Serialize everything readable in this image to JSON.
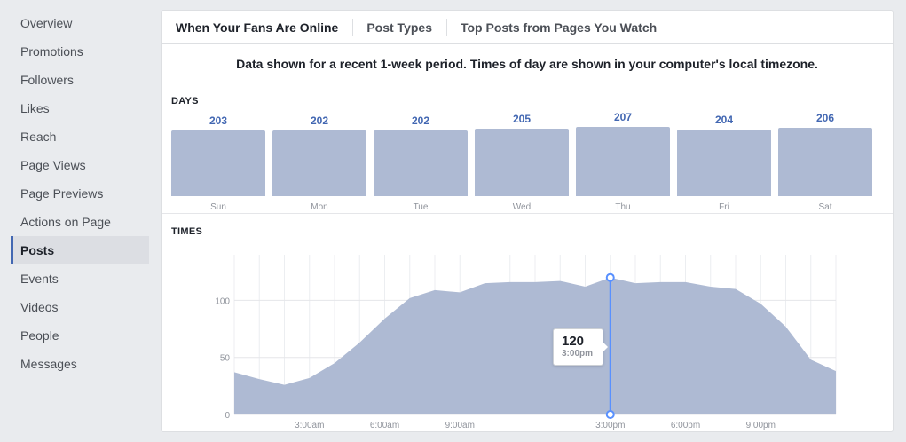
{
  "sidebar": {
    "items": [
      {
        "label": "Overview",
        "active": false
      },
      {
        "label": "Promotions",
        "active": false
      },
      {
        "label": "Followers",
        "active": false
      },
      {
        "label": "Likes",
        "active": false
      },
      {
        "label": "Reach",
        "active": false
      },
      {
        "label": "Page Views",
        "active": false
      },
      {
        "label": "Page Previews",
        "active": false
      },
      {
        "label": "Actions on Page",
        "active": false
      },
      {
        "label": "Posts",
        "active": true
      },
      {
        "label": "Events",
        "active": false
      },
      {
        "label": "Videos",
        "active": false
      },
      {
        "label": "People",
        "active": false
      },
      {
        "label": "Messages",
        "active": false
      }
    ]
  },
  "tabs": [
    {
      "label": "When Your Fans Are Online",
      "active": true
    },
    {
      "label": "Post Types",
      "active": false
    },
    {
      "label": "Top Posts from Pages You Watch",
      "active": false
    }
  ],
  "notice": "Data shown for a recent 1-week period. Times of day are shown in your computer's local timezone.",
  "days_section": {
    "title": "DAYS"
  },
  "times_section": {
    "title": "TIMES"
  },
  "tooltip": {
    "value": "120",
    "time": "3:00pm"
  },
  "colors": {
    "accent": "#4267b2",
    "fill": "#aebad3",
    "line": "#5890ff"
  },
  "chart_data": [
    {
      "type": "bar",
      "title": "DAYS",
      "categories": [
        "Sun",
        "Mon",
        "Tue",
        "Wed",
        "Thu",
        "Fri",
        "Sat"
      ],
      "values": [
        203,
        202,
        202,
        205,
        207,
        204,
        206
      ]
    },
    {
      "type": "area",
      "title": "TIMES",
      "x": [
        "12:00am",
        "1:00am",
        "2:00am",
        "3:00am",
        "4:00am",
        "5:00am",
        "6:00am",
        "7:00am",
        "8:00am",
        "9:00am",
        "10:00am",
        "11:00am",
        "12:00pm",
        "1:00pm",
        "2:00pm",
        "3:00pm",
        "4:00pm",
        "5:00pm",
        "6:00pm",
        "7:00pm",
        "8:00pm",
        "9:00pm",
        "10:00pm",
        "11:00pm",
        "12:00am"
      ],
      "values": [
        37,
        31,
        26,
        32,
        45,
        63,
        84,
        102,
        109,
        107,
        115,
        116,
        116,
        117,
        112,
        120,
        115,
        116,
        116,
        112,
        110,
        97,
        77,
        48,
        38
      ],
      "xticks": [
        "3:00am",
        "6:00am",
        "9:00am",
        "3:00pm",
        "6:00pm",
        "9:00pm"
      ],
      "yticks": [
        0,
        50,
        100
      ],
      "ylim": [
        0,
        140
      ],
      "highlight": {
        "x": "3:00pm",
        "value": 120
      }
    }
  ]
}
